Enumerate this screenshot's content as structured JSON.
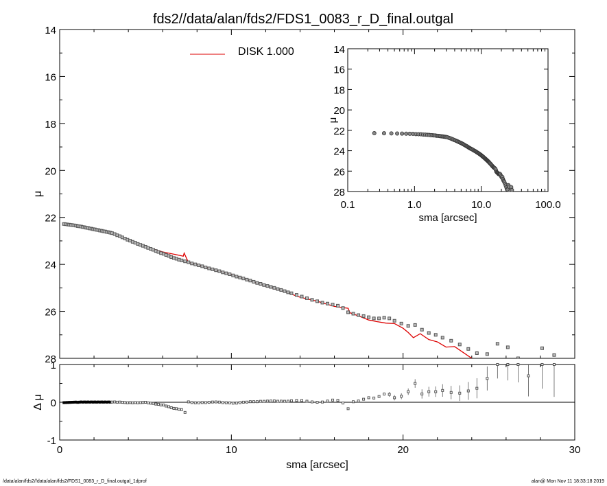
{
  "title": "fds2//data/alan/fds2/FDS1_0083_r_D_final.outgal",
  "footer": {
    "left": "/data/alan/fds2//data/alan/fds2/FDS1_0083_r_D_final.outgal_1dprof",
    "right": "alan@  Mon Nov 11 18:33:18 2019"
  },
  "colors": {
    "model": "#dd0000",
    "points": "#555555",
    "axes": "#000000"
  },
  "chart_data": [
    {
      "id": "main",
      "type": "scatter",
      "ylabel": "μ",
      "xlim": [
        0,
        30
      ],
      "ylim": [
        28,
        14
      ],
      "yticks": [
        14,
        16,
        18,
        20,
        22,
        24,
        26,
        28
      ],
      "legend": {
        "label": "DISK  1.000",
        "placement": "top-center"
      },
      "series": [
        {
          "name": "data",
          "x": [
            0.25,
            0.35,
            0.45,
            0.55,
            0.65,
            0.75,
            0.85,
            0.95,
            1.05,
            1.15,
            1.25,
            1.35,
            1.45,
            1.55,
            1.65,
            1.75,
            1.85,
            1.95,
            2.05,
            2.15,
            2.25,
            2.35,
            2.45,
            2.55,
            2.65,
            2.75,
            2.85,
            2.95,
            3.05,
            3.2,
            3.35,
            3.5,
            3.65,
            3.8,
            3.95,
            4.1,
            4.25,
            4.4,
            4.55,
            4.7,
            4.85,
            5.0,
            5.15,
            5.3,
            5.45,
            5.6,
            5.75,
            5.9,
            6.05,
            6.2,
            6.35,
            6.5,
            6.65,
            6.8,
            6.95,
            7.1,
            7.3,
            7.5,
            7.7,
            7.9,
            8.1,
            8.3,
            8.5,
            8.7,
            8.9,
            9.1,
            9.3,
            9.5,
            9.7,
            9.9,
            10.1,
            10.3,
            10.5,
            10.7,
            10.9,
            11.1,
            11.3,
            11.5,
            11.7,
            11.9,
            12.1,
            12.3,
            12.5,
            12.7,
            12.9,
            13.1,
            13.3,
            13.5,
            13.8,
            14.1,
            14.4,
            14.7,
            15.0,
            15.3,
            15.6,
            15.9,
            16.2,
            16.5,
            16.8,
            17.1,
            17.4,
            17.7,
            18.0,
            18.3,
            18.6,
            18.9,
            19.2,
            19.5,
            19.9,
            20.3,
            20.7,
            21.1,
            21.5,
            21.9,
            22.3,
            22.8,
            23.3,
            23.8,
            24.3,
            24.9,
            25.5,
            26.1,
            26.7,
            27.3,
            28.1,
            28.8
          ],
          "y": [
            22.28,
            22.29,
            22.3,
            22.31,
            22.32,
            22.33,
            22.34,
            22.35,
            22.37,
            22.38,
            22.39,
            22.41,
            22.42,
            22.44,
            22.45,
            22.47,
            22.48,
            22.5,
            22.51,
            22.53,
            22.54,
            22.56,
            22.57,
            22.59,
            22.6,
            22.62,
            22.63,
            22.65,
            22.67,
            22.71,
            22.76,
            22.8,
            22.85,
            22.9,
            22.95,
            22.99,
            23.04,
            23.08,
            23.13,
            23.17,
            23.21,
            23.25,
            23.3,
            23.34,
            23.38,
            23.43,
            23.47,
            23.52,
            23.55,
            23.6,
            23.64,
            23.69,
            23.73,
            23.76,
            23.8,
            23.83,
            23.87,
            23.91,
            23.96,
            24.0,
            24.04,
            24.08,
            24.13,
            24.17,
            24.21,
            24.25,
            24.29,
            24.34,
            24.38,
            24.42,
            24.47,
            24.52,
            24.56,
            24.6,
            24.65,
            24.69,
            24.74,
            24.79,
            24.83,
            24.88,
            24.92,
            24.96,
            25.0,
            25.05,
            25.09,
            25.14,
            25.19,
            25.23,
            25.3,
            25.37,
            25.44,
            25.51,
            25.57,
            25.63,
            25.67,
            25.71,
            25.76,
            25.86,
            26.04,
            26.1,
            26.16,
            26.2,
            26.25,
            26.3,
            26.3,
            26.27,
            26.3,
            26.4,
            26.52,
            26.62,
            26.58,
            26.78,
            26.92,
            27.0,
            27.12,
            27.25,
            27.41,
            27.6,
            27.78,
            27.82,
            27.38,
            27.53,
            28.0,
            28.95,
            27.57,
            27.86
          ],
          "err": [
            0.005,
            0.005,
            0.005,
            0.005,
            0.005,
            0.005,
            0.005,
            0.005,
            0.005,
            0.005,
            0.005,
            0.005,
            0.005,
            0.005,
            0.005,
            0.005,
            0.005,
            0.005,
            0.005,
            0.005,
            0.005,
            0.005,
            0.005,
            0.005,
            0.005,
            0.005,
            0.005,
            0.005,
            0.005,
            0.005,
            0.005,
            0.005,
            0.005,
            0.005,
            0.005,
            0.005,
            0.005,
            0.005,
            0.005,
            0.005,
            0.005,
            0.005,
            0.005,
            0.005,
            0.005,
            0.005,
            0.005,
            0.005,
            0.005,
            0.005,
            0.005,
            0.005,
            0.005,
            0.005,
            0.005,
            0.005,
            0.005,
            0.005,
            0.005,
            0.005,
            0.005,
            0.005,
            0.005,
            0.005,
            0.005,
            0.005,
            0.005,
            0.005,
            0.005,
            0.005,
            0.005,
            0.005,
            0.005,
            0.005,
            0.005,
            0.005,
            0.005,
            0.005,
            0.005,
            0.005,
            0.005,
            0.005,
            0.005,
            0.005,
            0.005,
            0.005,
            0.005,
            0.005,
            0.005,
            0.005,
            0.005,
            0.005,
            0.005,
            0.005,
            0.005,
            0.005,
            0.005,
            0.005,
            0.005,
            0.01,
            0.01,
            0.01,
            0.01,
            0.01,
            0.01,
            0.01,
            0.02,
            0.02,
            0.02,
            0.02,
            0.03,
            0.03,
            0.03,
            0.03,
            0.04,
            0.04,
            0.05,
            0.06,
            0.07,
            0.09,
            0.11,
            0.13,
            0.15,
            0.18,
            0.22,
            0.32
          ]
        },
        {
          "name": "DISK  1.000",
          "x": [
            0.25,
            1.0,
            2.0,
            3.0,
            4.0,
            5.0,
            6.0,
            7.0,
            7.2,
            7.25,
            7.5,
            8.0,
            9.0,
            10.0,
            11.0,
            12.0,
            13.0,
            14.0,
            15.0,
            16.0,
            16.8,
            16.9,
            17.5,
            18.0,
            18.5,
            19.0,
            19.5,
            20.0,
            20.3,
            20.6,
            21.0,
            21.5,
            22.0,
            22.5,
            23.0,
            23.5,
            24.0
          ],
          "y": [
            22.27,
            22.36,
            22.51,
            22.66,
            22.95,
            23.25,
            23.47,
            23.62,
            23.65,
            23.52,
            23.92,
            24.0,
            24.24,
            24.42,
            24.68,
            24.93,
            25.14,
            25.4,
            25.57,
            25.79,
            25.87,
            26.06,
            26.22,
            26.37,
            26.44,
            26.5,
            26.52,
            26.72,
            26.9,
            27.12,
            26.95,
            27.2,
            27.3,
            27.52,
            27.5,
            27.75,
            28.0
          ]
        }
      ]
    },
    {
      "id": "residual",
      "type": "scatter",
      "ylabel": "Δ μ",
      "xlabel": "sma [arcsec]",
      "xlim": [
        0,
        30
      ],
      "ylim": [
        -1.0,
        1.0
      ],
      "xticks": [
        0,
        10,
        20,
        30
      ],
      "yticks": [
        -1,
        0,
        1
      ],
      "zero_line": true
    },
    {
      "id": "inset",
      "type": "scatter",
      "ylabel": "μ",
      "xlabel": "sma [arcsec]",
      "x_scale": "log",
      "xlim": [
        0.1,
        100.0
      ],
      "ylim": [
        28,
        14
      ],
      "xticks": [
        0.1,
        1.0,
        10.0,
        100.0
      ],
      "xticklabels": [
        "0.1",
        "1.0",
        "10.0",
        "100.0"
      ],
      "yticks": [
        14,
        16,
        18,
        20,
        22,
        24,
        26,
        28
      ]
    }
  ]
}
